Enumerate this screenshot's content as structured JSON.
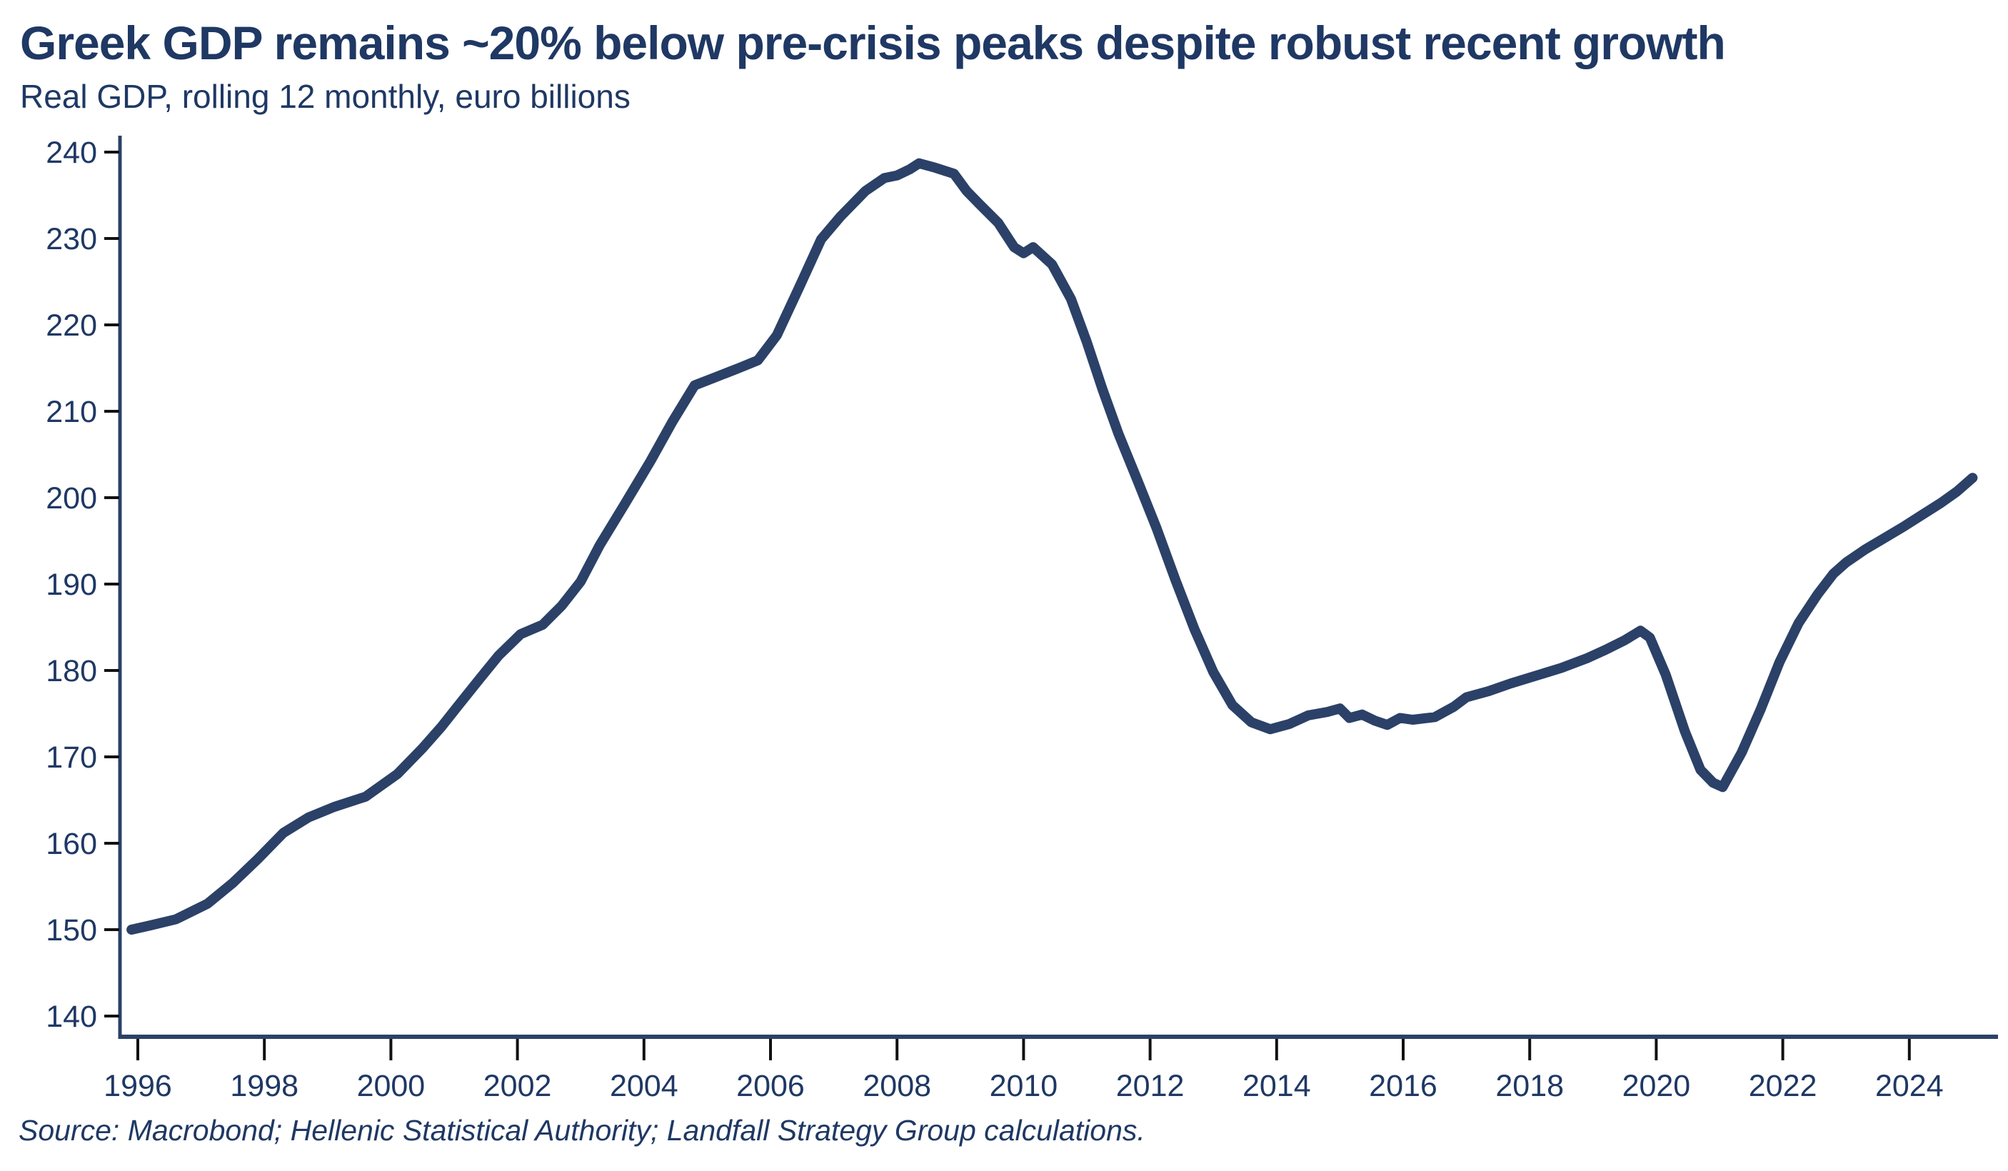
{
  "header": {
    "title": "Greek GDP remains ~20% below pre-crisis peaks despite robust recent growth",
    "subtitle": "Real GDP, rolling 12 monthly, euro billions"
  },
  "footer": {
    "source": "Source: Macrobond; Hellenic Statistical Authority; Landfall Strategy Group calculations."
  },
  "colors": {
    "navy_text": "#1F3864",
    "line": "#2B4168",
    "axis": "#2B4168",
    "tick_mark": "#111111",
    "background": "#FFFFFF"
  },
  "chart_data": {
    "type": "line",
    "title": "Greek GDP remains ~20% below pre-crisis peaks despite robust recent growth",
    "subtitle": "Real GDP, rolling 12 monthly, euro billions",
    "xlabel": "",
    "ylabel": "Real GDP, rolling 12 monthly, euro billions",
    "xlim": [
      1995.7,
      2025.6
    ],
    "ylim": [
      140,
      240
    ],
    "xticks": [
      1996,
      1998,
      2000,
      2002,
      2004,
      2006,
      2008,
      2010,
      2012,
      2014,
      2016,
      2018,
      2020,
      2022,
      2024
    ],
    "yticks": [
      140,
      150,
      160,
      170,
      180,
      190,
      200,
      210,
      220,
      230,
      240
    ],
    "grid": false,
    "legend": "none",
    "annotations": {
      "start_value": 150.0,
      "pre_crisis_peak": {
        "year": 2008.35,
        "value": 238.7
      },
      "austerity_trough": {
        "year": 2013.9,
        "value": 173.2
      },
      "pre_covid_peak": {
        "year": 2019.75,
        "value": 184.6
      },
      "covid_trough": {
        "year": 2021.05,
        "value": 166.5
      },
      "end_value": {
        "year": 2025.0,
        "value": 202.3
      }
    },
    "series": [
      {
        "name": "Real GDP (rolling 12-month, EUR bn)",
        "color": "#2B4168",
        "points": [
          [
            1995.9,
            150.0
          ],
          [
            1996.2,
            150.5
          ],
          [
            1996.6,
            151.2
          ],
          [
            1997.1,
            153.0
          ],
          [
            1997.5,
            155.4
          ],
          [
            1997.9,
            158.2
          ],
          [
            1998.3,
            161.2
          ],
          [
            1998.7,
            163.0
          ],
          [
            1999.1,
            164.2
          ],
          [
            1999.6,
            165.4
          ],
          [
            2000.1,
            168.0
          ],
          [
            2000.5,
            171.0
          ],
          [
            2000.8,
            173.5
          ],
          [
            2001.05,
            175.8
          ],
          [
            2001.4,
            179.0
          ],
          [
            2001.7,
            181.7
          ],
          [
            2002.05,
            184.2
          ],
          [
            2002.4,
            185.3
          ],
          [
            2002.7,
            187.5
          ],
          [
            2003.0,
            190.3
          ],
          [
            2003.3,
            194.5
          ],
          [
            2003.7,
            199.3
          ],
          [
            2004.1,
            204.2
          ],
          [
            2004.45,
            208.8
          ],
          [
            2004.8,
            213.0
          ],
          [
            2005.15,
            214.0
          ],
          [
            2005.5,
            215.0
          ],
          [
            2005.8,
            215.9
          ],
          [
            2006.1,
            218.8
          ],
          [
            2006.45,
            224.3
          ],
          [
            2006.8,
            229.9
          ],
          [
            2007.1,
            232.5
          ],
          [
            2007.5,
            235.5
          ],
          [
            2007.8,
            237.0
          ],
          [
            2008.0,
            237.3
          ],
          [
            2008.2,
            238.0
          ],
          [
            2008.35,
            238.7
          ],
          [
            2008.6,
            238.2
          ],
          [
            2008.9,
            237.5
          ],
          [
            2009.1,
            235.5
          ],
          [
            2009.3,
            234.0
          ],
          [
            2009.6,
            231.8
          ],
          [
            2009.85,
            229.0
          ],
          [
            2010.0,
            228.3
          ],
          [
            2010.15,
            229.0
          ],
          [
            2010.45,
            227.0
          ],
          [
            2010.75,
            223.0
          ],
          [
            2011.0,
            218.0
          ],
          [
            2011.25,
            212.5
          ],
          [
            2011.5,
            207.4
          ],
          [
            2011.8,
            202.0
          ],
          [
            2012.1,
            196.5
          ],
          [
            2012.4,
            190.5
          ],
          [
            2012.7,
            184.8
          ],
          [
            2013.0,
            179.8
          ],
          [
            2013.3,
            176.0
          ],
          [
            2013.6,
            174.0
          ],
          [
            2013.9,
            173.2
          ],
          [
            2014.2,
            173.8
          ],
          [
            2014.5,
            174.8
          ],
          [
            2014.8,
            175.2
          ],
          [
            2015.0,
            175.6
          ],
          [
            2015.15,
            174.5
          ],
          [
            2015.35,
            174.9
          ],
          [
            2015.55,
            174.2
          ],
          [
            2015.75,
            173.7
          ],
          [
            2015.95,
            174.5
          ],
          [
            2016.15,
            174.3
          ],
          [
            2016.5,
            174.6
          ],
          [
            2016.8,
            175.8
          ],
          [
            2017.0,
            176.9
          ],
          [
            2017.35,
            177.6
          ],
          [
            2017.7,
            178.5
          ],
          [
            2018.1,
            179.4
          ],
          [
            2018.5,
            180.3
          ],
          [
            2018.9,
            181.4
          ],
          [
            2019.2,
            182.4
          ],
          [
            2019.5,
            183.5
          ],
          [
            2019.75,
            184.6
          ],
          [
            2019.9,
            183.8
          ],
          [
            2020.15,
            179.5
          ],
          [
            2020.45,
            173.0
          ],
          [
            2020.7,
            168.5
          ],
          [
            2020.9,
            167.0
          ],
          [
            2021.05,
            166.5
          ],
          [
            2021.35,
            170.5
          ],
          [
            2021.65,
            175.5
          ],
          [
            2021.95,
            181.0
          ],
          [
            2022.25,
            185.5
          ],
          [
            2022.55,
            188.8
          ],
          [
            2022.8,
            191.2
          ],
          [
            2023.0,
            192.5
          ],
          [
            2023.3,
            194.0
          ],
          [
            2023.6,
            195.3
          ],
          [
            2023.9,
            196.6
          ],
          [
            2024.2,
            198.0
          ],
          [
            2024.5,
            199.4
          ],
          [
            2024.75,
            200.7
          ],
          [
            2025.0,
            202.3
          ]
        ]
      }
    ]
  }
}
